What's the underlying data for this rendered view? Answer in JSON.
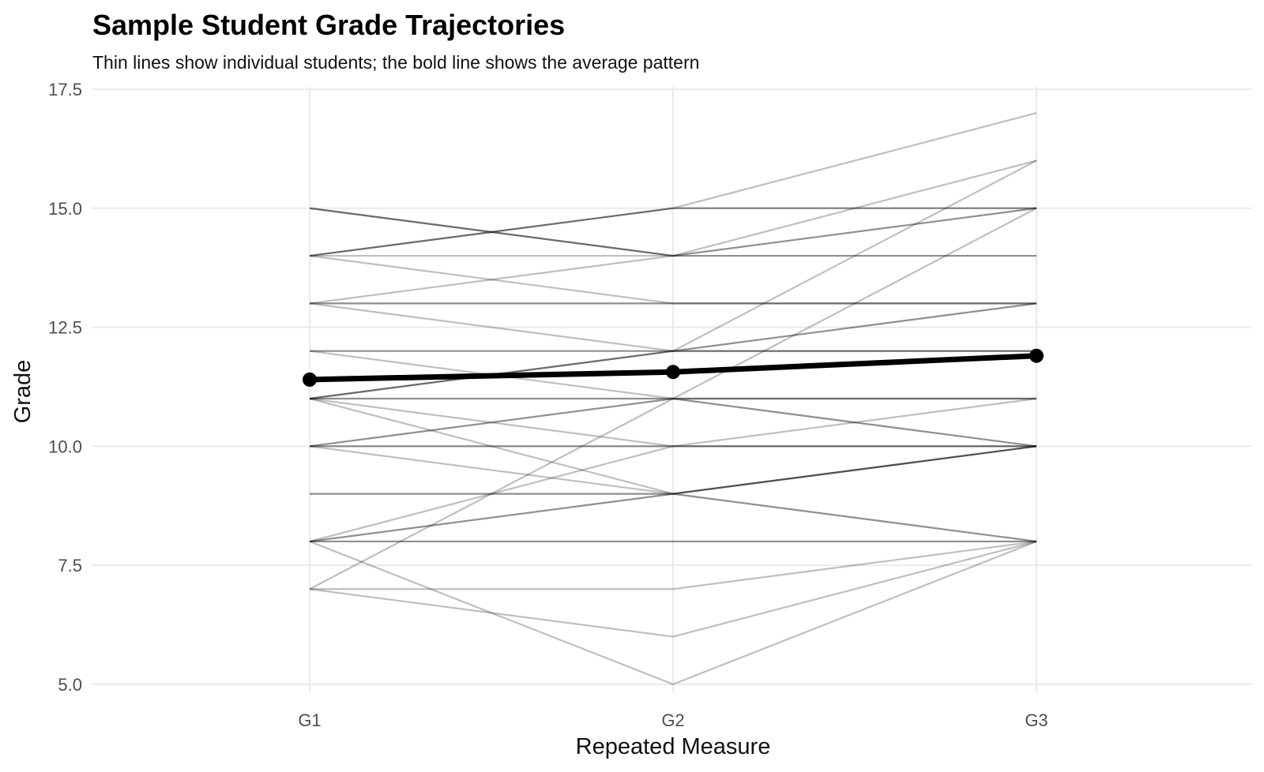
{
  "chart_data": {
    "type": "line",
    "title": "Sample Student Grade Trajectories",
    "subtitle": "Thin lines show individual students; the bold line shows the average pattern",
    "xlabel": "Repeated Measure",
    "ylabel": "Grade",
    "categories": [
      "G1",
      "G2",
      "G3"
    ],
    "ylim": [
      4.5,
      17.5
    ],
    "yticks": [
      5.0,
      7.5,
      10.0,
      12.5,
      15.0,
      17.5
    ],
    "ytick_labels": [
      "5.0",
      "7.5",
      "10.0",
      "12.5",
      "15.0",
      "17.5"
    ],
    "grid": true,
    "legend": "none",
    "colors": {
      "student_line": "#000000",
      "average_line": "#000000",
      "grid": "#ebebeb"
    },
    "student_series_opacity": 0.25,
    "students": [
      [
        15,
        14,
        15
      ],
      [
        15,
        14,
        15
      ],
      [
        15,
        14,
        14
      ],
      [
        14,
        15,
        17
      ],
      [
        14,
        15,
        15
      ],
      [
        14,
        15,
        15
      ],
      [
        14,
        14,
        14
      ],
      [
        14,
        13,
        13
      ],
      [
        13,
        13,
        13
      ],
      [
        13,
        13,
        13
      ],
      [
        13,
        14,
        16
      ],
      [
        13,
        12,
        12
      ],
      [
        12,
        12,
        12
      ],
      [
        12,
        12,
        12
      ],
      [
        12,
        11,
        11
      ],
      [
        11,
        12,
        16
      ],
      [
        11,
        12,
        13
      ],
      [
        11,
        12,
        13
      ],
      [
        11,
        11,
        11
      ],
      [
        11,
        11,
        11
      ],
      [
        11,
        10,
        10
      ],
      [
        11,
        9,
        8
      ],
      [
        10,
        11,
        10
      ],
      [
        10,
        11,
        10
      ],
      [
        10,
        10,
        10
      ],
      [
        10,
        10,
        10
      ],
      [
        10,
        9,
        8
      ],
      [
        9,
        9,
        10
      ],
      [
        9,
        9,
        10
      ],
      [
        8,
        10,
        11
      ],
      [
        8,
        9,
        10
      ],
      [
        8,
        9,
        10
      ],
      [
        8,
        8,
        8
      ],
      [
        8,
        8,
        8
      ],
      [
        8,
        5,
        8
      ],
      [
        7,
        11,
        15
      ],
      [
        7,
        7,
        8
      ],
      [
        7,
        6,
        8
      ]
    ],
    "series": [
      {
        "role": "average",
        "x": [
          "G1",
          "G2",
          "G3"
        ],
        "values": [
          11.4,
          11.56,
          11.9
        ]
      }
    ]
  }
}
